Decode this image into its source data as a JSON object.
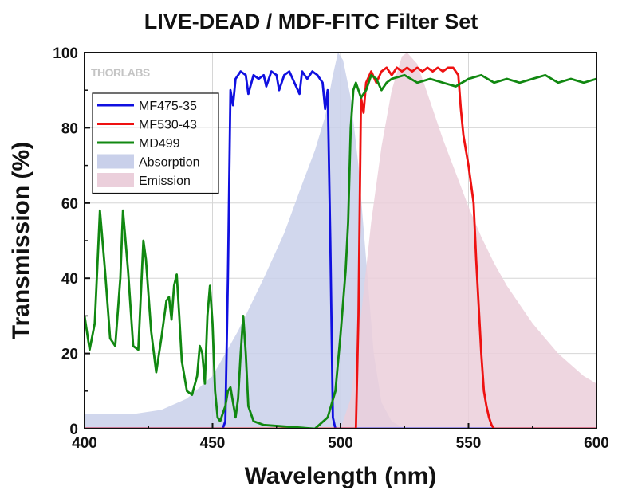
{
  "chart_data": {
    "type": "line",
    "title": "LIVE-DEAD / MDF-FITC Filter Set",
    "xlabel": "Wavelength (nm)",
    "ylabel": "Transmission (%)",
    "xlim": [
      400,
      600
    ],
    "ylim": [
      0,
      100
    ],
    "xticks": [
      400,
      450,
      500,
      550,
      600
    ],
    "yticks": [
      0,
      20,
      40,
      60,
      80,
      100
    ],
    "grid": true,
    "legend_position": "top-left",
    "logo": "THORLABS",
    "series": [
      {
        "name": "MF475-35",
        "kind": "line",
        "color": "#1010e0",
        "points": [
          [
            400,
            0
          ],
          [
            454,
            0
          ],
          [
            455,
            2
          ],
          [
            456,
            40
          ],
          [
            457,
            90
          ],
          [
            458,
            86
          ],
          [
            459,
            93
          ],
          [
            461,
            95
          ],
          [
            463,
            94
          ],
          [
            464,
            89
          ],
          [
            466,
            94
          ],
          [
            468,
            93
          ],
          [
            470,
            94
          ],
          [
            471,
            91
          ],
          [
            473,
            95
          ],
          [
            475,
            94
          ],
          [
            476,
            90
          ],
          [
            478,
            94
          ],
          [
            480,
            95
          ],
          [
            482,
            92
          ],
          [
            484,
            89
          ],
          [
            485,
            95
          ],
          [
            487,
            93
          ],
          [
            489,
            95
          ],
          [
            491,
            94
          ],
          [
            493,
            92
          ],
          [
            494,
            85
          ],
          [
            495,
            90
          ],
          [
            496,
            50
          ],
          [
            497,
            3
          ],
          [
            498,
            0
          ],
          [
            600,
            0
          ]
        ]
      },
      {
        "name": "MF530-43",
        "kind": "line",
        "color": "#ee1111",
        "points": [
          [
            400,
            0
          ],
          [
            506,
            0
          ],
          [
            507,
            30
          ],
          [
            508,
            88
          ],
          [
            509,
            84
          ],
          [
            510,
            92
          ],
          [
            512,
            95
          ],
          [
            514,
            92
          ],
          [
            516,
            95
          ],
          [
            518,
            96
          ],
          [
            520,
            94
          ],
          [
            522,
            96
          ],
          [
            524,
            95
          ],
          [
            526,
            96
          ],
          [
            528,
            95
          ],
          [
            530,
            96
          ],
          [
            532,
            95
          ],
          [
            534,
            96
          ],
          [
            536,
            95
          ],
          [
            538,
            96
          ],
          [
            540,
            95
          ],
          [
            542,
            96
          ],
          [
            544,
            96
          ],
          [
            546,
            94
          ],
          [
            547,
            85
          ],
          [
            548,
            78
          ],
          [
            550,
            70
          ],
          [
            552,
            60
          ],
          [
            553,
            45
          ],
          [
            555,
            20
          ],
          [
            556,
            10
          ],
          [
            557,
            6
          ],
          [
            558,
            3
          ],
          [
            559,
            1
          ],
          [
            560,
            0
          ],
          [
            600,
            0
          ]
        ]
      },
      {
        "name": "MD499",
        "kind": "line",
        "color": "#118811",
        "points": [
          [
            400,
            30
          ],
          [
            402,
            21
          ],
          [
            404,
            28
          ],
          [
            406,
            58
          ],
          [
            408,
            42
          ],
          [
            410,
            24
          ],
          [
            412,
            22
          ],
          [
            414,
            40
          ],
          [
            415,
            58
          ],
          [
            417,
            42
          ],
          [
            419,
            22
          ],
          [
            421,
            21
          ],
          [
            423,
            50
          ],
          [
            424,
            45
          ],
          [
            426,
            26
          ],
          [
            428,
            15
          ],
          [
            430,
            24
          ],
          [
            432,
            34
          ],
          [
            433,
            35
          ],
          [
            434,
            29
          ],
          [
            435,
            38
          ],
          [
            436,
            41
          ],
          [
            437,
            30
          ],
          [
            438,
            18
          ],
          [
            440,
            10
          ],
          [
            442,
            9
          ],
          [
            444,
            14
          ],
          [
            445,
            22
          ],
          [
            446,
            20
          ],
          [
            447,
            12
          ],
          [
            448,
            30
          ],
          [
            449,
            38
          ],
          [
            450,
            28
          ],
          [
            451,
            10
          ],
          [
            452,
            3
          ],
          [
            453,
            2
          ],
          [
            454,
            4
          ],
          [
            455,
            6
          ],
          [
            456,
            10
          ],
          [
            457,
            11
          ],
          [
            458,
            7
          ],
          [
            459,
            3
          ],
          [
            460,
            8
          ],
          [
            461,
            20
          ],
          [
            462,
            30
          ],
          [
            463,
            20
          ],
          [
            464,
            6
          ],
          [
            466,
            2
          ],
          [
            470,
            1
          ],
          [
            490,
            0
          ],
          [
            495,
            3
          ],
          [
            498,
            10
          ],
          [
            500,
            25
          ],
          [
            502,
            42
          ],
          [
            503,
            55
          ],
          [
            504,
            80
          ],
          [
            505,
            90
          ],
          [
            506,
            92
          ],
          [
            508,
            88
          ],
          [
            510,
            90
          ],
          [
            512,
            94
          ],
          [
            514,
            93
          ],
          [
            516,
            90
          ],
          [
            518,
            92
          ],
          [
            520,
            93
          ],
          [
            525,
            94
          ],
          [
            530,
            92
          ],
          [
            535,
            93
          ],
          [
            540,
            92
          ],
          [
            545,
            91
          ],
          [
            550,
            93
          ],
          [
            555,
            94
          ],
          [
            560,
            92
          ],
          [
            565,
            93
          ],
          [
            570,
            92
          ],
          [
            575,
            93
          ],
          [
            580,
            94
          ],
          [
            585,
            92
          ],
          [
            590,
            93
          ],
          [
            595,
            92
          ],
          [
            600,
            93
          ]
        ]
      },
      {
        "name": "Absorption",
        "kind": "area",
        "color": "#c9d0ea",
        "points": [
          [
            400,
            4
          ],
          [
            420,
            4
          ],
          [
            430,
            5
          ],
          [
            440,
            8
          ],
          [
            450,
            14
          ],
          [
            460,
            26
          ],
          [
            470,
            40
          ],
          [
            478,
            52
          ],
          [
            485,
            65
          ],
          [
            490,
            74
          ],
          [
            494,
            83
          ],
          [
            497,
            94
          ],
          [
            499,
            100
          ],
          [
            501,
            98
          ],
          [
            504,
            88
          ],
          [
            507,
            70
          ],
          [
            510,
            45
          ],
          [
            513,
            20
          ],
          [
            516,
            7
          ],
          [
            520,
            2
          ],
          [
            525,
            0
          ],
          [
            600,
            0
          ]
        ]
      },
      {
        "name": "Emission",
        "kind": "area",
        "color": "#ebcfdb",
        "points": [
          [
            400,
            0
          ],
          [
            500,
            0
          ],
          [
            504,
            8
          ],
          [
            508,
            30
          ],
          [
            512,
            55
          ],
          [
            516,
            75
          ],
          [
            520,
            90
          ],
          [
            524,
            99
          ],
          [
            526,
            100
          ],
          [
            530,
            97
          ],
          [
            535,
            87
          ],
          [
            540,
            77
          ],
          [
            545,
            68
          ],
          [
            550,
            59
          ],
          [
            555,
            51
          ],
          [
            560,
            44
          ],
          [
            565,
            38
          ],
          [
            570,
            33
          ],
          [
            575,
            28
          ],
          [
            580,
            24
          ],
          [
            585,
            20
          ],
          [
            590,
            17
          ],
          [
            595,
            14
          ],
          [
            600,
            12
          ]
        ]
      }
    ],
    "layer_order": [
      "Absorption",
      "Emission",
      "MF475-35",
      "MF530-43",
      "MD499"
    ]
  }
}
